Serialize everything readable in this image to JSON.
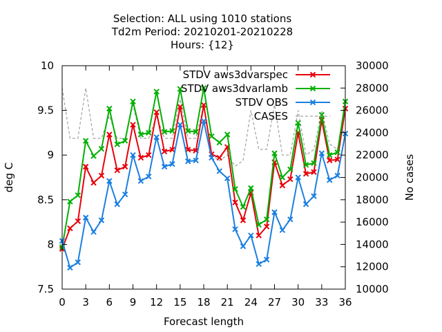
{
  "chart_data": {
    "type": "line",
    "title_lines": [
      "Selection: ALL using  1010 stations",
      "Td2m   Period: 20210201-20210228",
      "Hours: {12}"
    ],
    "xlabel": "Forecast length",
    "ylabel": "deg C",
    "y2label": "No cases",
    "xlim": [
      0,
      36
    ],
    "ylim": [
      7.5,
      10
    ],
    "y2lim": [
      10000,
      30000
    ],
    "xticks": [
      0,
      3,
      6,
      9,
      12,
      15,
      18,
      21,
      24,
      27,
      30,
      33,
      36
    ],
    "yticks": [
      "7.5",
      "8",
      "8.5",
      "9",
      "9.5",
      "10"
    ],
    "y2ticks": [
      "10000",
      "12000",
      "14000",
      "16000",
      "18000",
      "20000",
      "22000",
      "24000",
      "26000",
      "28000",
      "30000"
    ],
    "legend_position": "top-right",
    "grid": false,
    "x": [
      0,
      1,
      2,
      3,
      4,
      5,
      6,
      7,
      8,
      9,
      10,
      11,
      12,
      13,
      14,
      15,
      16,
      17,
      18,
      19,
      20,
      21,
      22,
      23,
      24,
      25,
      26,
      27,
      28,
      29,
      30,
      31,
      32,
      33,
      34,
      35,
      36
    ],
    "series": [
      {
        "name": "STDV aws3dvarspec",
        "color": "#e8000b",
        "axis": "y1",
        "marker": "x",
        "values": [
          7.95,
          8.18,
          8.26,
          8.87,
          8.69,
          8.77,
          9.23,
          8.83,
          8.87,
          9.34,
          8.97,
          9.0,
          9.48,
          9.04,
          9.06,
          9.54,
          9.06,
          9.05,
          9.56,
          9.01,
          8.97,
          9.09,
          8.47,
          8.27,
          8.58,
          8.1,
          8.2,
          8.92,
          8.66,
          8.73,
          9.25,
          8.79,
          8.81,
          9.39,
          8.94,
          8.95,
          9.52
        ]
      },
      {
        "name": "STDV aws3dvarlamb",
        "color": "#00b000",
        "axis": "y1",
        "marker": "x",
        "values": [
          7.97,
          8.48,
          8.55,
          9.16,
          8.99,
          9.07,
          9.52,
          9.12,
          9.16,
          9.6,
          9.23,
          9.25,
          9.71,
          9.26,
          9.27,
          9.74,
          9.27,
          9.26,
          9.75,
          9.21,
          9.14,
          9.23,
          8.62,
          8.42,
          8.63,
          8.22,
          8.28,
          9.02,
          8.75,
          8.84,
          9.36,
          8.89,
          8.91,
          9.45,
          9.0,
          9.03,
          9.6
        ]
      },
      {
        "name": "STDV OBS",
        "color": "#1a7fe0",
        "axis": "y1",
        "marker": "x",
        "values": [
          8.04,
          7.74,
          7.8,
          8.3,
          8.14,
          8.27,
          8.71,
          8.45,
          8.56,
          9.0,
          8.71,
          8.76,
          9.2,
          8.87,
          8.9,
          9.34,
          8.93,
          8.94,
          9.38,
          8.97,
          8.82,
          8.74,
          8.17,
          7.98,
          8.1,
          7.78,
          7.83,
          8.36,
          8.16,
          8.28,
          8.75,
          8.45,
          8.54,
          9.02,
          8.72,
          8.77,
          9.24
        ]
      },
      {
        "name": "CASES",
        "color": "#a0a0a0",
        "axis": "y2",
        "marker": "none",
        "values": [
          28000,
          23500,
          23500,
          28000,
          23500,
          23500,
          25500,
          23500,
          23500,
          26500,
          23500,
          23500,
          25500,
          23500,
          23500,
          27000,
          23500,
          23500,
          26500,
          22000,
          21500,
          22000,
          21000,
          21500,
          26000,
          22500,
          22500,
          26500,
          22000,
          22000,
          26000,
          22000,
          22500,
          26000,
          23000,
          22500,
          26000
        ]
      }
    ]
  }
}
